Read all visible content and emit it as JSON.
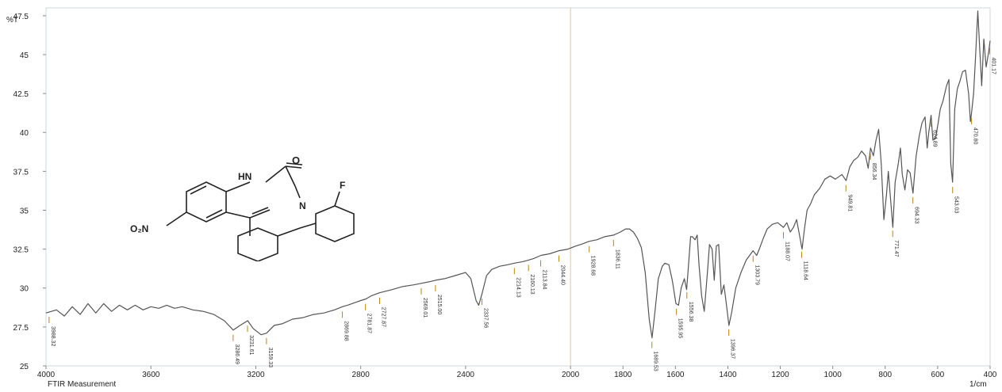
{
  "chart_data": {
    "type": "line",
    "title": "",
    "xlabel": "FTIR Measurement",
    "xunit": "1/cm",
    "ylabel": "%T",
    "xlim": [
      4000,
      400
    ],
    "ylim": [
      25,
      48
    ],
    "x_ticks": [
      "4000",
      "3600",
      "3200",
      "2800",
      "2400",
      "2000",
      "1800",
      "1600",
      "1400",
      "1200",
      "1000",
      "800",
      "600",
      "400"
    ],
    "y_ticks": [
      "25",
      "27.5",
      "30",
      "32.5",
      "35",
      "37.5",
      "40",
      "42.5",
      "45",
      "47.5"
    ],
    "colors": {
      "line": "#555555",
      "frame": "#cfd6df",
      "marker": "#b8860b",
      "marker_blue": "#7fa7c9"
    },
    "series": [
      {
        "name": "",
        "points": [
          [
            4000,
            28.4
          ],
          [
            3960,
            28.6
          ],
          [
            3930,
            28.2
          ],
          [
            3900,
            28.8
          ],
          [
            3870,
            28.3
          ],
          [
            3840,
            29.0
          ],
          [
            3810,
            28.4
          ],
          [
            3780,
            29.0
          ],
          [
            3750,
            28.5
          ],
          [
            3720,
            28.9
          ],
          [
            3690,
            28.6
          ],
          [
            3660,
            28.9
          ],
          [
            3630,
            28.6
          ],
          [
            3600,
            28.8
          ],
          [
            3570,
            28.7
          ],
          [
            3540,
            28.9
          ],
          [
            3510,
            28.7
          ],
          [
            3480,
            28.8
          ],
          [
            3440,
            28.6
          ],
          [
            3400,
            28.5
          ],
          [
            3360,
            28.3
          ],
          [
            3320,
            27.9
          ],
          [
            3286,
            27.3
          ],
          [
            3260,
            27.6
          ],
          [
            3231,
            27.9
          ],
          [
            3210,
            27.4
          ],
          [
            3180,
            27.0
          ],
          [
            3159,
            27.1
          ],
          [
            3130,
            27.6
          ],
          [
            3100,
            27.7
          ],
          [
            3060,
            28.0
          ],
          [
            3020,
            28.1
          ],
          [
            2980,
            28.3
          ],
          [
            2940,
            28.4
          ],
          [
            2900,
            28.6
          ],
          [
            2870,
            28.8
          ],
          [
            2850,
            28.9
          ],
          [
            2800,
            29.2
          ],
          [
            2780,
            29.3
          ],
          [
            2760,
            29.5
          ],
          [
            2727,
            29.7
          ],
          [
            2680,
            29.9
          ],
          [
            2640,
            30.1
          ],
          [
            2600,
            30.2
          ],
          [
            2569,
            30.3
          ],
          [
            2540,
            30.4
          ],
          [
            2515,
            30.5
          ],
          [
            2480,
            30.6
          ],
          [
            2440,
            30.8
          ],
          [
            2400,
            31.0
          ],
          [
            2380,
            30.6
          ],
          [
            2360,
            29.2
          ],
          [
            2350,
            28.9
          ],
          [
            2338,
            29.6
          ],
          [
            2320,
            30.8
          ],
          [
            2300,
            31.2
          ],
          [
            2270,
            31.4
          ],
          [
            2240,
            31.5
          ],
          [
            2214,
            31.6
          ],
          [
            2180,
            31.7
          ],
          [
            2160,
            31.8
          ],
          [
            2140,
            31.9
          ],
          [
            2113,
            32.1
          ],
          [
            2080,
            32.2
          ],
          [
            2044,
            32.4
          ],
          [
            2010,
            32.5
          ],
          [
            1980,
            32.7
          ],
          [
            1960,
            32.8
          ],
          [
            1930,
            33.0
          ],
          [
            1900,
            33.1
          ],
          [
            1870,
            33.3
          ],
          [
            1836,
            33.4
          ],
          [
            1810,
            33.6
          ],
          [
            1790,
            33.8
          ],
          [
            1775,
            33.8
          ],
          [
            1760,
            33.6
          ],
          [
            1745,
            33.2
          ],
          [
            1730,
            32.6
          ],
          [
            1715,
            31.0
          ],
          [
            1700,
            28.0
          ],
          [
            1689,
            26.8
          ],
          [
            1678,
            28.5
          ],
          [
            1665,
            30.6
          ],
          [
            1650,
            31.4
          ],
          [
            1640,
            31.6
          ],
          [
            1625,
            31.5
          ],
          [
            1612,
            30.5
          ],
          [
            1598,
            29.0
          ],
          [
            1588,
            28.9
          ],
          [
            1578,
            30.0
          ],
          [
            1566,
            30.6
          ],
          [
            1557,
            29.9
          ],
          [
            1550,
            31.5
          ],
          [
            1542,
            33.3
          ],
          [
            1535,
            33.3
          ],
          [
            1525,
            33.1
          ],
          [
            1517,
            33.4
          ],
          [
            1510,
            31.5
          ],
          [
            1500,
            29.5
          ],
          [
            1490,
            28.5
          ],
          [
            1478,
            31.0
          ],
          [
            1470,
            32.8
          ],
          [
            1460,
            32.5
          ],
          [
            1452,
            30.5
          ],
          [
            1444,
            32.7
          ],
          [
            1435,
            32.8
          ],
          [
            1425,
            29.6
          ],
          [
            1415,
            30.2
          ],
          [
            1406,
            29.0
          ],
          [
            1396,
            27.6
          ],
          [
            1386,
            28.4
          ],
          [
            1370,
            30.0
          ],
          [
            1350,
            31.0
          ],
          [
            1330,
            31.8
          ],
          [
            1304,
            32.4
          ],
          [
            1290,
            32.1
          ],
          [
            1278,
            32.6
          ],
          [
            1265,
            33.2
          ],
          [
            1250,
            33.8
          ],
          [
            1230,
            34.1
          ],
          [
            1210,
            34.2
          ],
          [
            1188,
            33.9
          ],
          [
            1175,
            34.2
          ],
          [
            1162,
            33.6
          ],
          [
            1150,
            33.9
          ],
          [
            1138,
            34.4
          ],
          [
            1128,
            33.5
          ],
          [
            1117,
            32.5
          ],
          [
            1108,
            33.8
          ],
          [
            1098,
            35.0
          ],
          [
            1085,
            35.4
          ],
          [
            1070,
            36.0
          ],
          [
            1050,
            36.4
          ],
          [
            1030,
            37.0
          ],
          [
            1010,
            37.2
          ],
          [
            990,
            37.0
          ],
          [
            965,
            37.3
          ],
          [
            949,
            36.9
          ],
          [
            935,
            37.8
          ],
          [
            920,
            38.2
          ],
          [
            905,
            38.4
          ],
          [
            890,
            38.8
          ],
          [
            875,
            38.5
          ],
          [
            865,
            37.7
          ],
          [
            856,
            39.0
          ],
          [
            845,
            38.5
          ],
          [
            835,
            39.5
          ],
          [
            825,
            40.2
          ],
          [
            815,
            38.0
          ],
          [
            805,
            34.4
          ],
          [
            795,
            36.0
          ],
          [
            788,
            37.5
          ],
          [
            780,
            35.8
          ],
          [
            771,
            33.9
          ],
          [
            762,
            36.8
          ],
          [
            750,
            38.0
          ],
          [
            742,
            39.0
          ],
          [
            735,
            37.3
          ],
          [
            725,
            36.3
          ],
          [
            715,
            37.6
          ],
          [
            705,
            37.4
          ],
          [
            694,
            36.1
          ],
          [
            682,
            38.5
          ],
          [
            670,
            39.8
          ],
          [
            660,
            40.6
          ],
          [
            648,
            41.0
          ],
          [
            640,
            39.0
          ],
          [
            634,
            40.0
          ],
          [
            625,
            41.1
          ],
          [
            618,
            39.5
          ],
          [
            608,
            39.6
          ],
          [
            598,
            40.6
          ],
          [
            590,
            41.5
          ],
          [
            580,
            42.0
          ],
          [
            566,
            43.0
          ],
          [
            557,
            43.4
          ],
          [
            550,
            38.0
          ],
          [
            543,
            36.8
          ],
          [
            535,
            41.5
          ],
          [
            525,
            42.8
          ],
          [
            515,
            43.3
          ],
          [
            505,
            43.9
          ],
          [
            494,
            44.0
          ],
          [
            482,
            42.5
          ],
          [
            475,
            40.7
          ],
          [
            471,
            41.2
          ],
          [
            463,
            42.5
          ],
          [
            455,
            45.0
          ],
          [
            447,
            47.8
          ],
          [
            440,
            45.5
          ],
          [
            432,
            43.0
          ],
          [
            424,
            46.0
          ],
          [
            415,
            44.2
          ],
          [
            405,
            45.2
          ],
          [
            400,
            45.9
          ]
        ]
      }
    ],
    "peak_labels": [
      {
        "x": 3988.32,
        "label": "3988.32"
      },
      {
        "x": 3286.49,
        "label": "3286.49"
      },
      {
        "x": 3231.61,
        "label": "3231.61"
      },
      {
        "x": 3159.33,
        "label": "3159.33"
      },
      {
        "x": 2869.88,
        "label": "2869.88"
      },
      {
        "x": 2781.87,
        "label": "2781.87"
      },
      {
        "x": 2727.87,
        "label": "2727.87"
      },
      {
        "x": 2569.01,
        "label": "2569.01"
      },
      {
        "x": 2515.0,
        "label": "2515.00"
      },
      {
        "x": 2337.56,
        "label": "2337.56"
      },
      {
        "x": 2214.13,
        "label": "2214.13"
      },
      {
        "x": 2160.13,
        "label": "2160.13"
      },
      {
        "x": 2113.84,
        "label": "2113.84"
      },
      {
        "x": 2044.4,
        "label": "2044.40"
      },
      {
        "x": 1928.68,
        "label": "1928.68"
      },
      {
        "x": 1836.11,
        "label": "1836.11"
      },
      {
        "x": 1689.53,
        "label": "1689.53"
      },
      {
        "x": 1595.95,
        "label": "1595.95"
      },
      {
        "x": 1556.38,
        "label": "1556.38"
      },
      {
        "x": 1396.37,
        "label": "1396.37"
      },
      {
        "x": 1303.79,
        "label": "1303.79"
      },
      {
        "x": 1188.07,
        "label": "1188.07"
      },
      {
        "x": 1118.64,
        "label": "1118.64"
      },
      {
        "x": 949.81,
        "label": "949.81"
      },
      {
        "x": 856.34,
        "label": "856.34"
      },
      {
        "x": 771.47,
        "label": "771.47"
      },
      {
        "x": 694.33,
        "label": "694.33"
      },
      {
        "x": 624.89,
        "label": "624.89"
      },
      {
        "x": 543.03,
        "label": "543.03"
      },
      {
        "x": 470.8,
        "label": "470.80"
      },
      {
        "x": 401.17,
        "label": "401.17"
      }
    ],
    "molecule_labels": {
      "hn": "HN",
      "o": "O",
      "n": "N",
      "f": "F",
      "o2n": "O₂N"
    }
  }
}
